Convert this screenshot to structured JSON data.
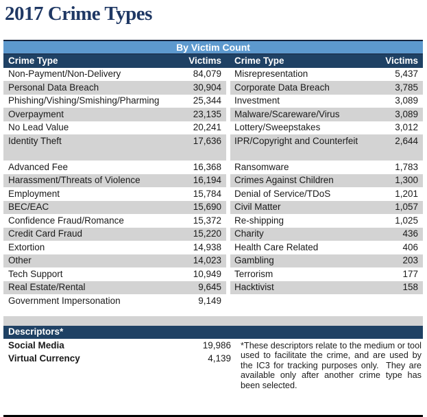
{
  "page": {
    "title": "2017 Crime Types"
  },
  "table": {
    "title": "By Victim Count",
    "col_headers": {
      "crime_type": "Crime Type",
      "victims": "Victims"
    },
    "rows": [
      {
        "left_type": "Non-Payment/Non-Delivery",
        "left_victims": "84,079",
        "right_type": "Misrepresentation",
        "right_victims": "5,437"
      },
      {
        "left_type": "Personal Data Breach",
        "left_victims": "30,904",
        "right_type": "Corporate Data Breach",
        "right_victims": "3,785"
      },
      {
        "left_type": "Phishing/Vishing/Smishing/Pharming",
        "left_victims": "25,344",
        "right_type": "Investment",
        "right_victims": "3,089"
      },
      {
        "left_type": "Overpayment",
        "left_victims": "23,135",
        "right_type": "Malware/Scareware/Virus",
        "right_victims": "3,089"
      },
      {
        "left_type": "No Lead Value",
        "left_victims": "20,241",
        "right_type": "Lottery/Sweepstakes",
        "right_victims": "3,012"
      },
      {
        "left_type": "Identity Theft",
        "left_victims": "17,636",
        "right_type": "IPR/Copyright and Counterfeit",
        "right_victims": "2,644",
        "tall": true
      },
      {
        "left_type": "Advanced Fee",
        "left_victims": "16,368",
        "right_type": "Ransomware",
        "right_victims": "1,783"
      },
      {
        "left_type": "Harassment/Threats of Violence",
        "left_victims": "16,194",
        "right_type": "Crimes Against Children",
        "right_victims": "1,300"
      },
      {
        "left_type": "Employment",
        "left_victims": "15,784",
        "right_type": "Denial of Service/TDoS",
        "right_victims": "1,201"
      },
      {
        "left_type": "BEC/EAC",
        "left_victims": "15,690",
        "right_type": "Civil Matter",
        "right_victims": "1,057"
      },
      {
        "left_type": "Confidence Fraud/Romance",
        "left_victims": "15,372",
        "right_type": "Re-shipping",
        "right_victims": "1,025"
      },
      {
        "left_type": "Credit Card Fraud",
        "left_victims": "15,220",
        "right_type": "Charity",
        "right_victims": "436"
      },
      {
        "left_type": "Extortion",
        "left_victims": "14,938",
        "right_type": "Health Care Related",
        "right_victims": "406"
      },
      {
        "left_type": "Other",
        "left_victims": "14,023",
        "right_type": "Gambling",
        "right_victims": "203"
      },
      {
        "left_type": "Tech Support",
        "left_victims": "10,949",
        "right_type": "Terrorism",
        "right_victims": "177"
      },
      {
        "left_type": "Real Estate/Rental",
        "left_victims": "9,645",
        "right_type": "Hacktivist",
        "right_victims": "158"
      },
      {
        "left_type": "Government Impersonation",
        "left_victims": "9,149",
        "right_type": "",
        "right_victims": ""
      }
    ]
  },
  "descriptors": {
    "title": "Descriptors*",
    "items": [
      {
        "label": "Social Media",
        "value": "19,986"
      },
      {
        "label": "Virtual Currency",
        "value": "4,139"
      }
    ],
    "note": "*These descriptors relate to the medium or tool used to facilitate the crime, and are used by the IC3 for tracking purposes only.  They are available only after another crime type has been selected."
  },
  "colors": {
    "title_text": "#1F3864",
    "band_blue": "#5D99CE",
    "header_navy": "#1F4164",
    "row_gray": "#D3D3D3",
    "rule_top": "#16243E",
    "rule_bottom": "#000000"
  }
}
